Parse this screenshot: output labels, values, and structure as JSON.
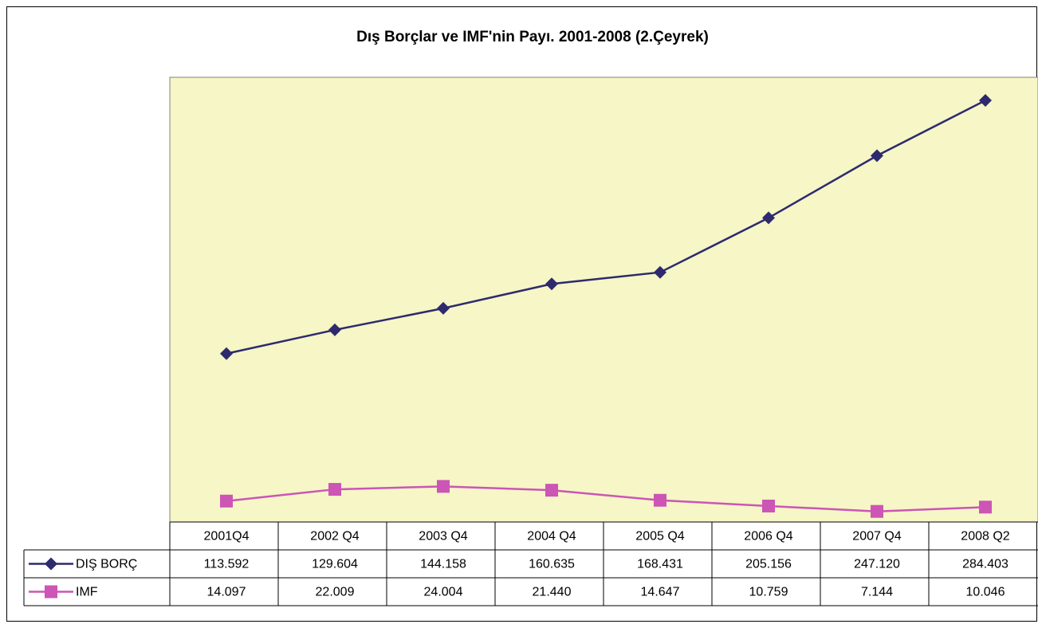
{
  "chart_data": {
    "type": "line",
    "title": "Dış Borçlar ve IMF'nin Payı. 2001-2008 (2.Çeyrek)",
    "categories": [
      "2001Q4",
      "2002 Q4",
      "2003 Q4",
      "2004 Q4",
      "2005 Q4",
      "2006 Q4",
      "2007 Q4",
      "2008 Q2"
    ],
    "series": [
      {
        "name": "DIŞ BORÇ",
        "color": "#2e2a6e",
        "marker": "diamond",
        "values": [
          113.592,
          129.604,
          144.158,
          160.635,
          168.431,
          205.156,
          247.12,
          284.403
        ],
        "value_labels": [
          "113.592",
          "129.604",
          "144.158",
          "160.635",
          "168.431",
          "205.156",
          "247.120",
          "284.403"
        ]
      },
      {
        "name": "IMF",
        "color": "#cc55b5",
        "marker": "square",
        "values": [
          14.097,
          22.009,
          24.004,
          21.44,
          14.647,
          10.759,
          7.144,
          10.046
        ],
        "value_labels": [
          "14.097",
          "22.009",
          "24.004",
          "21.440",
          "14.647",
          "10.759",
          "7.144",
          "10.046"
        ]
      }
    ],
    "ylim": [
      0,
      300
    ],
    "plot_background": "#f6f6c6"
  }
}
